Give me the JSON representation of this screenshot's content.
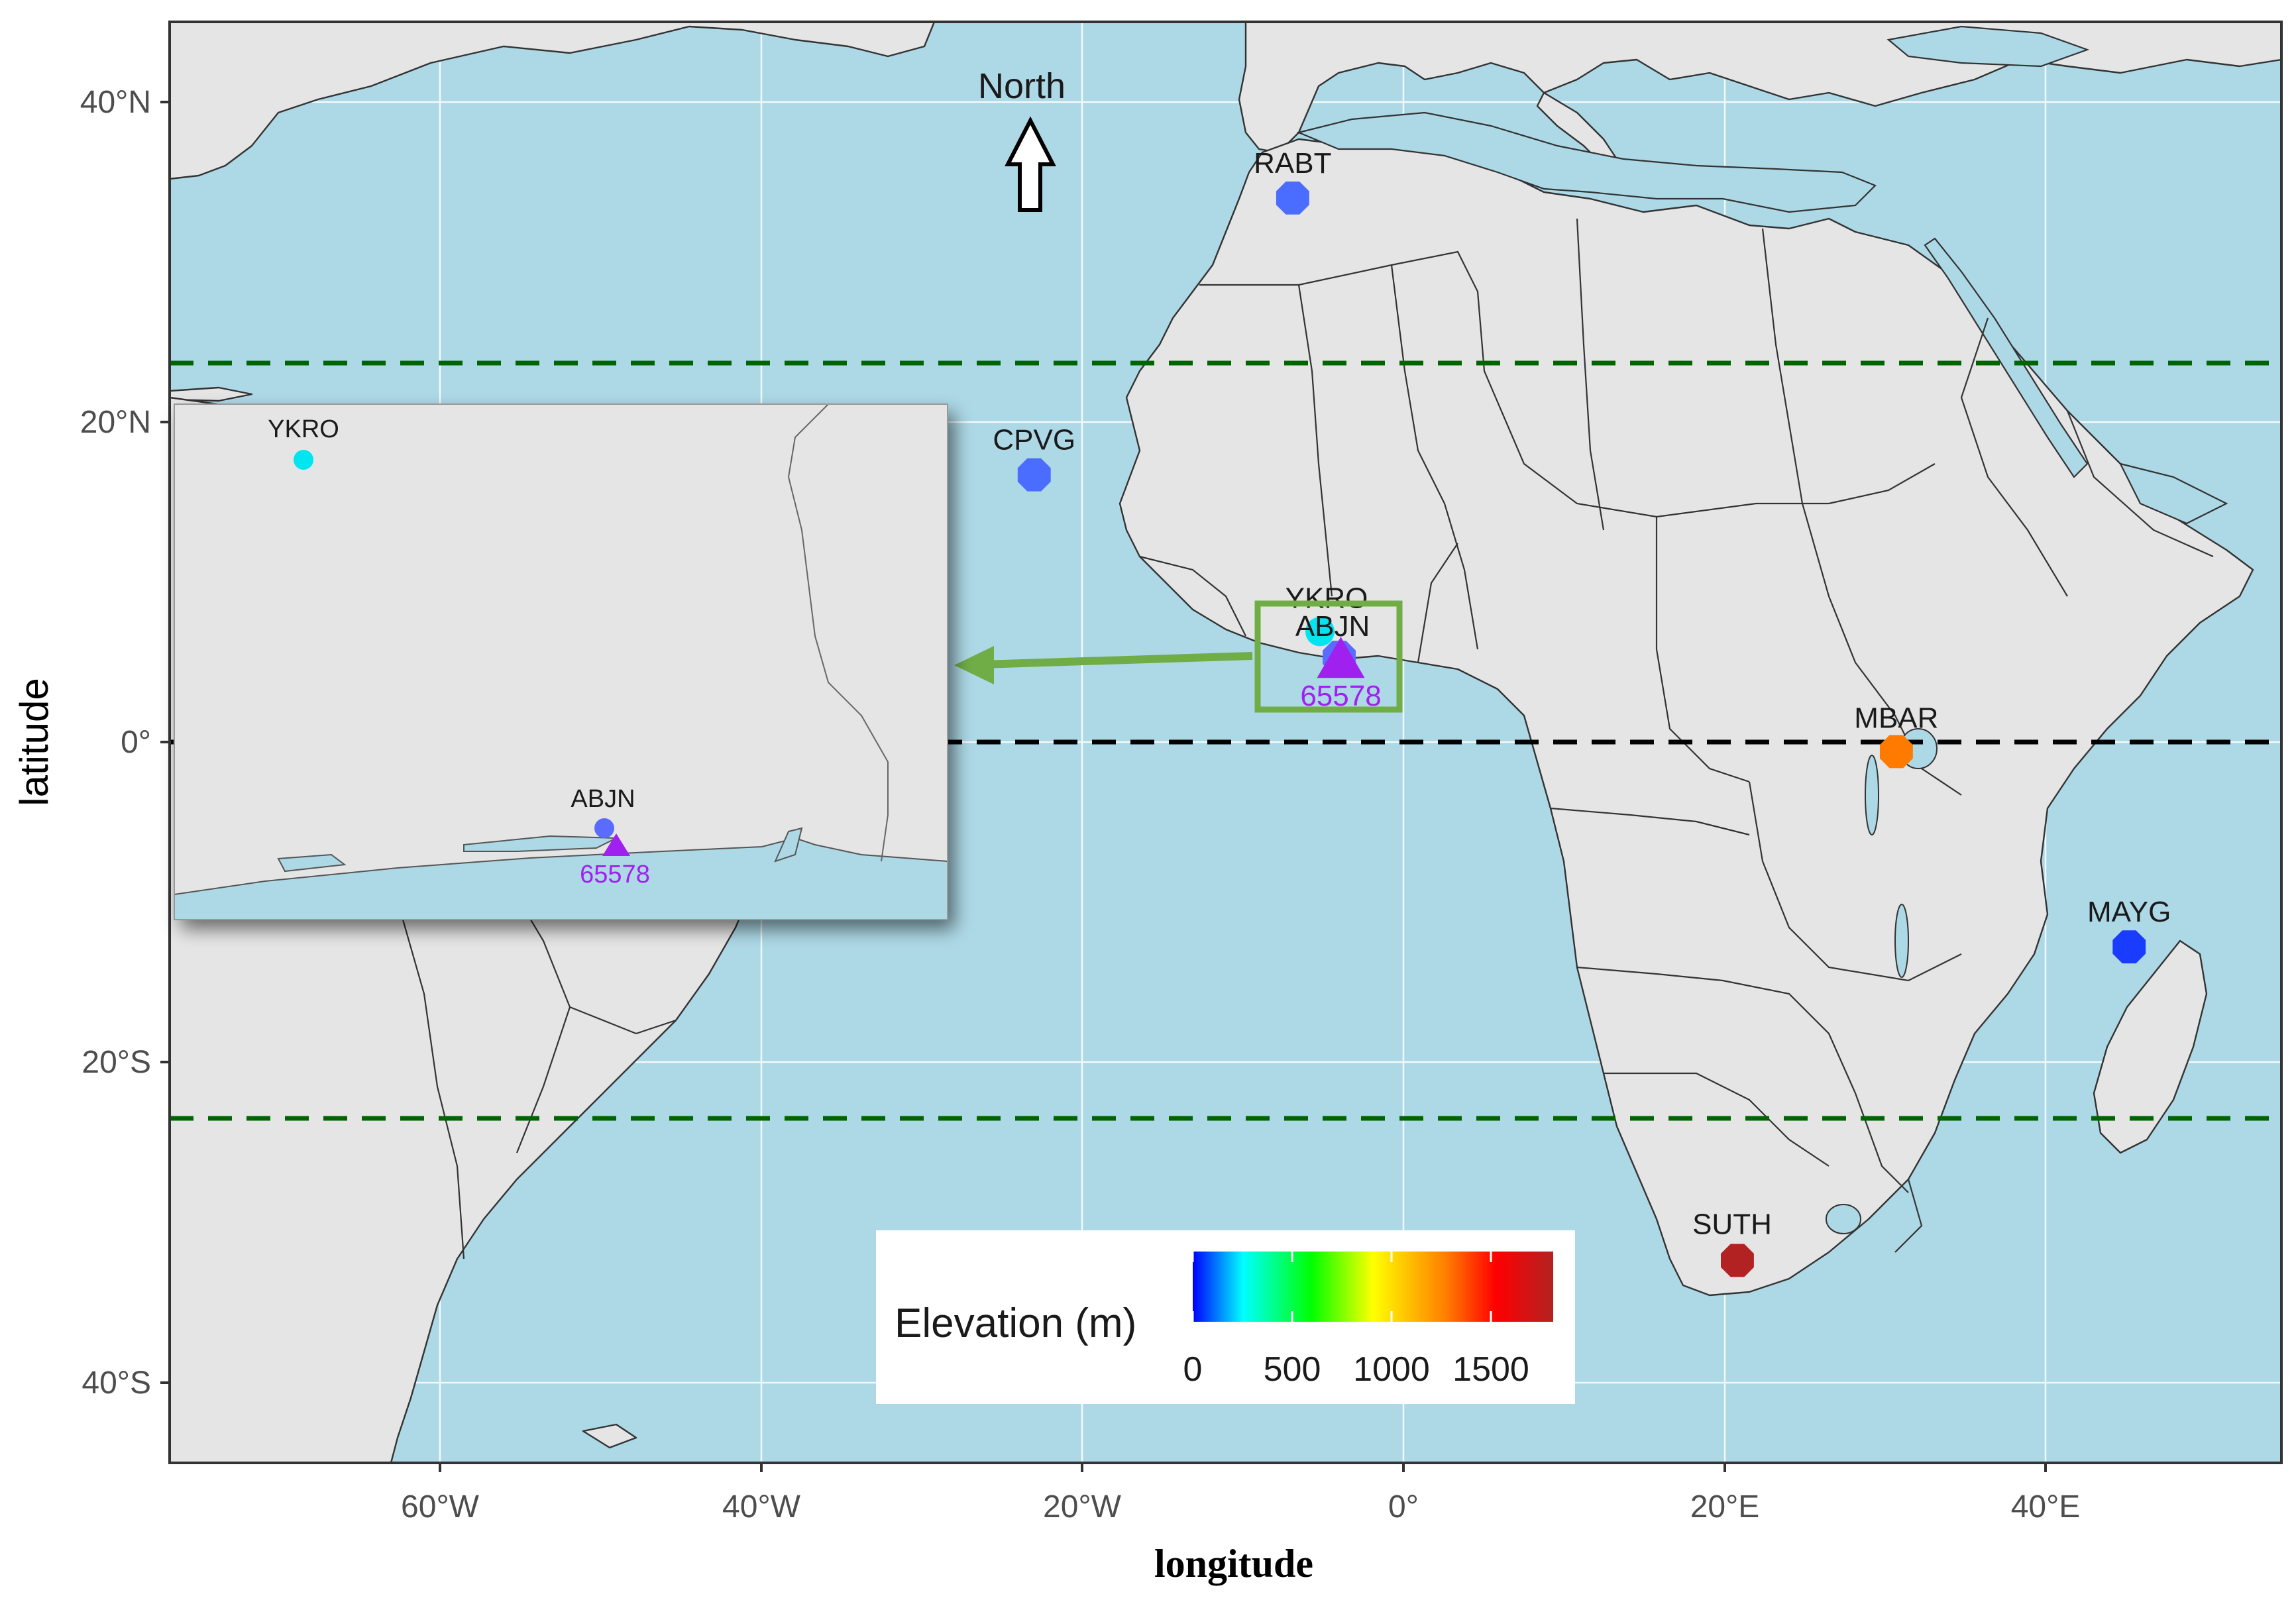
{
  "axes": {
    "x_label": "longitude",
    "y_label": "latitude",
    "x_ticks": [
      "60°W",
      "40°W",
      "20°W",
      "0°",
      "20°E",
      "40°E"
    ],
    "y_ticks": [
      "40°N",
      "20°N",
      "0°",
      "20°S",
      "40°S"
    ]
  },
  "map": {
    "extent": {
      "lon": [
        -77,
        55
      ],
      "lat": [
        -45,
        45
      ]
    },
    "reference_lines": [
      {
        "name": "Tropic of Cancer",
        "lat": 23.5,
        "color": "#006400",
        "style": "dashed"
      },
      {
        "name": "Equator",
        "lat": 0,
        "color": "#000000",
        "style": "dashed"
      },
      {
        "name": "Tropic of Capricorn",
        "lat": -23.5,
        "color": "#006400",
        "style": "dashed"
      }
    ],
    "north_arrow": {
      "label": "North"
    },
    "colors": {
      "ocean": "#add8e6",
      "land": "#e5e5e5",
      "border": "#333333",
      "highlight_box": "#70ad47"
    }
  },
  "stations": [
    {
      "id": "RABT",
      "lon": -6.9,
      "lat": 34.0,
      "elevation": 90,
      "color": "#4a6cff"
    },
    {
      "id": "CPVG",
      "lon": -23.0,
      "lat": 16.7,
      "elevation": 100,
      "color": "#4a6cff"
    },
    {
      "id": "YKRO",
      "lon": -5.2,
      "lat": 6.9,
      "elevation": 250,
      "color": "#00e5f0"
    },
    {
      "id": "ABJN",
      "lon": -4.0,
      "lat": 5.3,
      "elevation": 25,
      "color": "#5a6cff"
    },
    {
      "id": "MBAR",
      "lon": 30.7,
      "lat": -0.6,
      "elevation": 1350,
      "color": "#ff7a00"
    },
    {
      "id": "MAYG",
      "lon": 45.2,
      "lat": -12.8,
      "elevation": 30,
      "color": "#1a3cff"
    },
    {
      "id": "SUTH",
      "lon": 20.8,
      "lat": -32.4,
      "elevation": 1800,
      "color": "#b22222"
    }
  ],
  "site_65578": {
    "id": "65578",
    "lon": -3.9,
    "lat": 5.25,
    "color": "#a020f0",
    "shape": "triangle"
  },
  "inset": {
    "labels": {
      "ykro": "YKRO",
      "abjn": "ABJN",
      "site": "65578"
    }
  },
  "legend": {
    "title": "Elevation (m)",
    "ticks": [
      "0",
      "500",
      "1000",
      "1500"
    ],
    "colors": [
      "#0000ff",
      "#00ffff",
      "#00ff00",
      "#ffff00",
      "#ff8000",
      "#ff0000",
      "#b22222"
    ]
  }
}
